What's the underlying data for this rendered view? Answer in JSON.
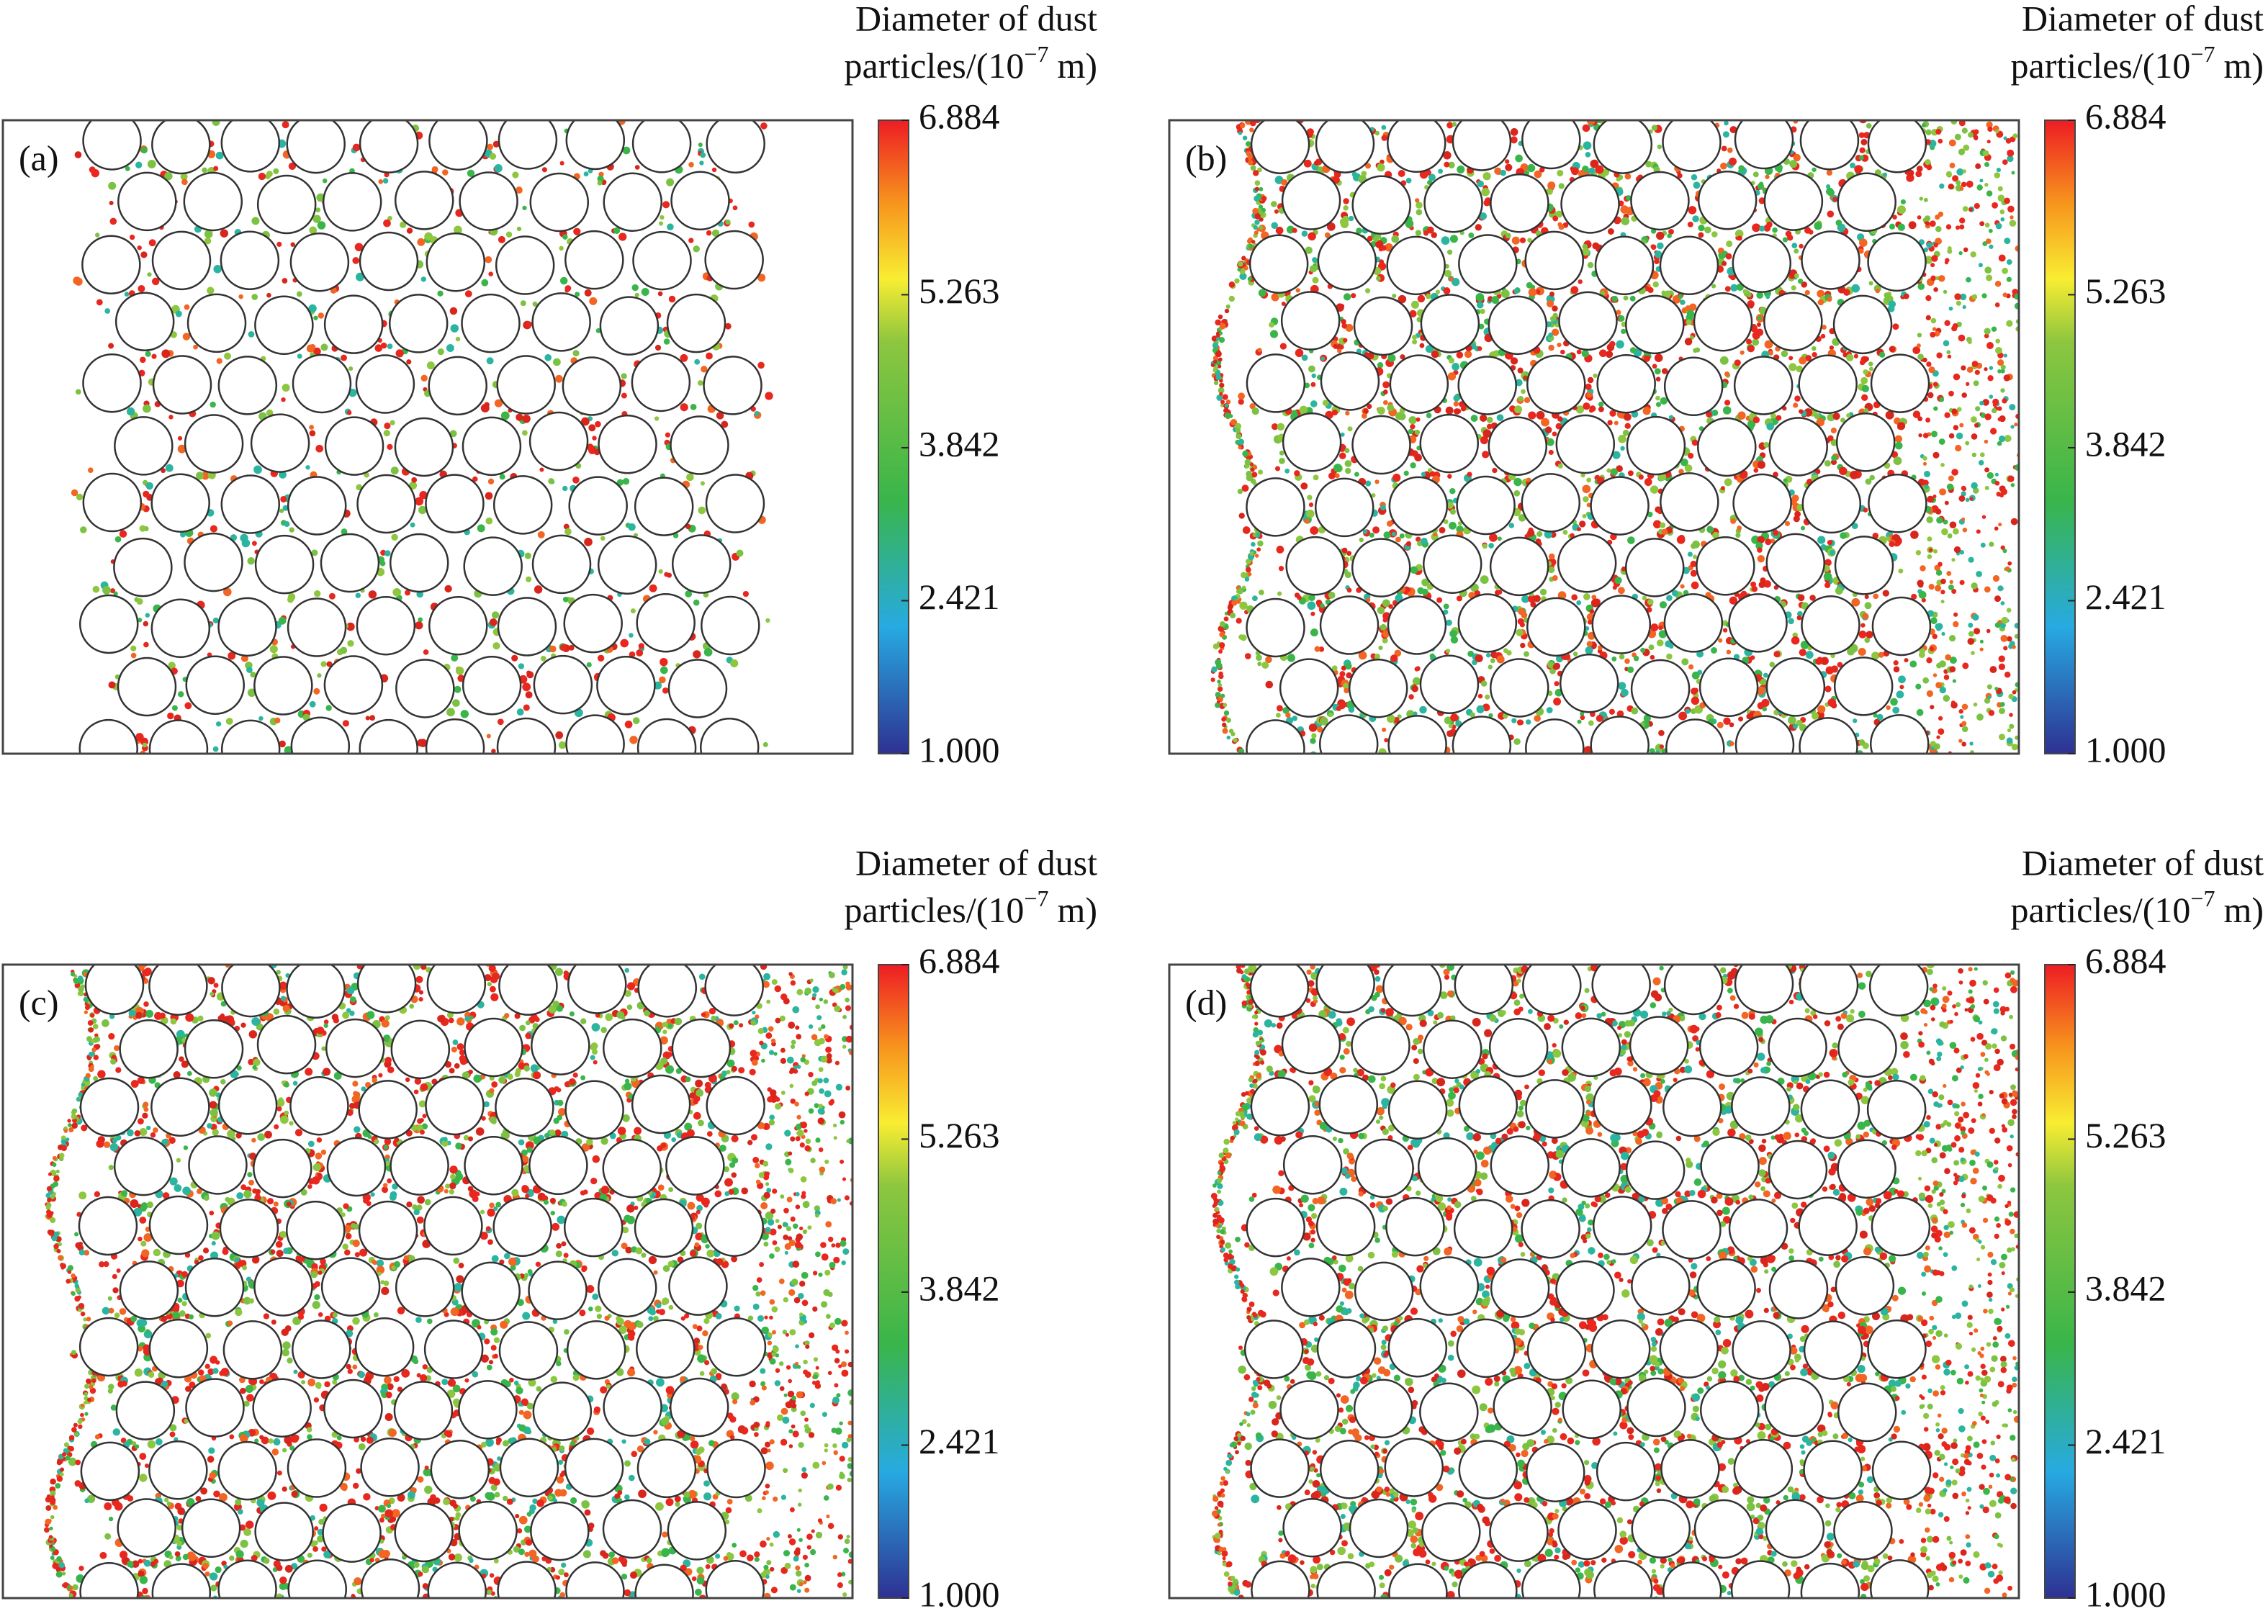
{
  "panels": [
    {
      "label": "(a)"
    },
    {
      "label": "(b)"
    },
    {
      "label": "(c)"
    },
    {
      "label": "(d)"
    }
  ],
  "colorbar": {
    "title_line1": "Diameter of dust",
    "title_line2": "particles/(10",
    "exponent": "−7",
    "unit": "m)",
    "lim": [
      1.0,
      6.884
    ],
    "ticks": [
      {
        "value": 6.884,
        "label": "6.884"
      },
      {
        "value": 5.263,
        "label": "5.263"
      },
      {
        "value": 3.842,
        "label": "3.842"
      },
      {
        "value": 2.421,
        "label": "2.421"
      },
      {
        "value": 1.0,
        "label": "1.000"
      }
    ]
  }
}
